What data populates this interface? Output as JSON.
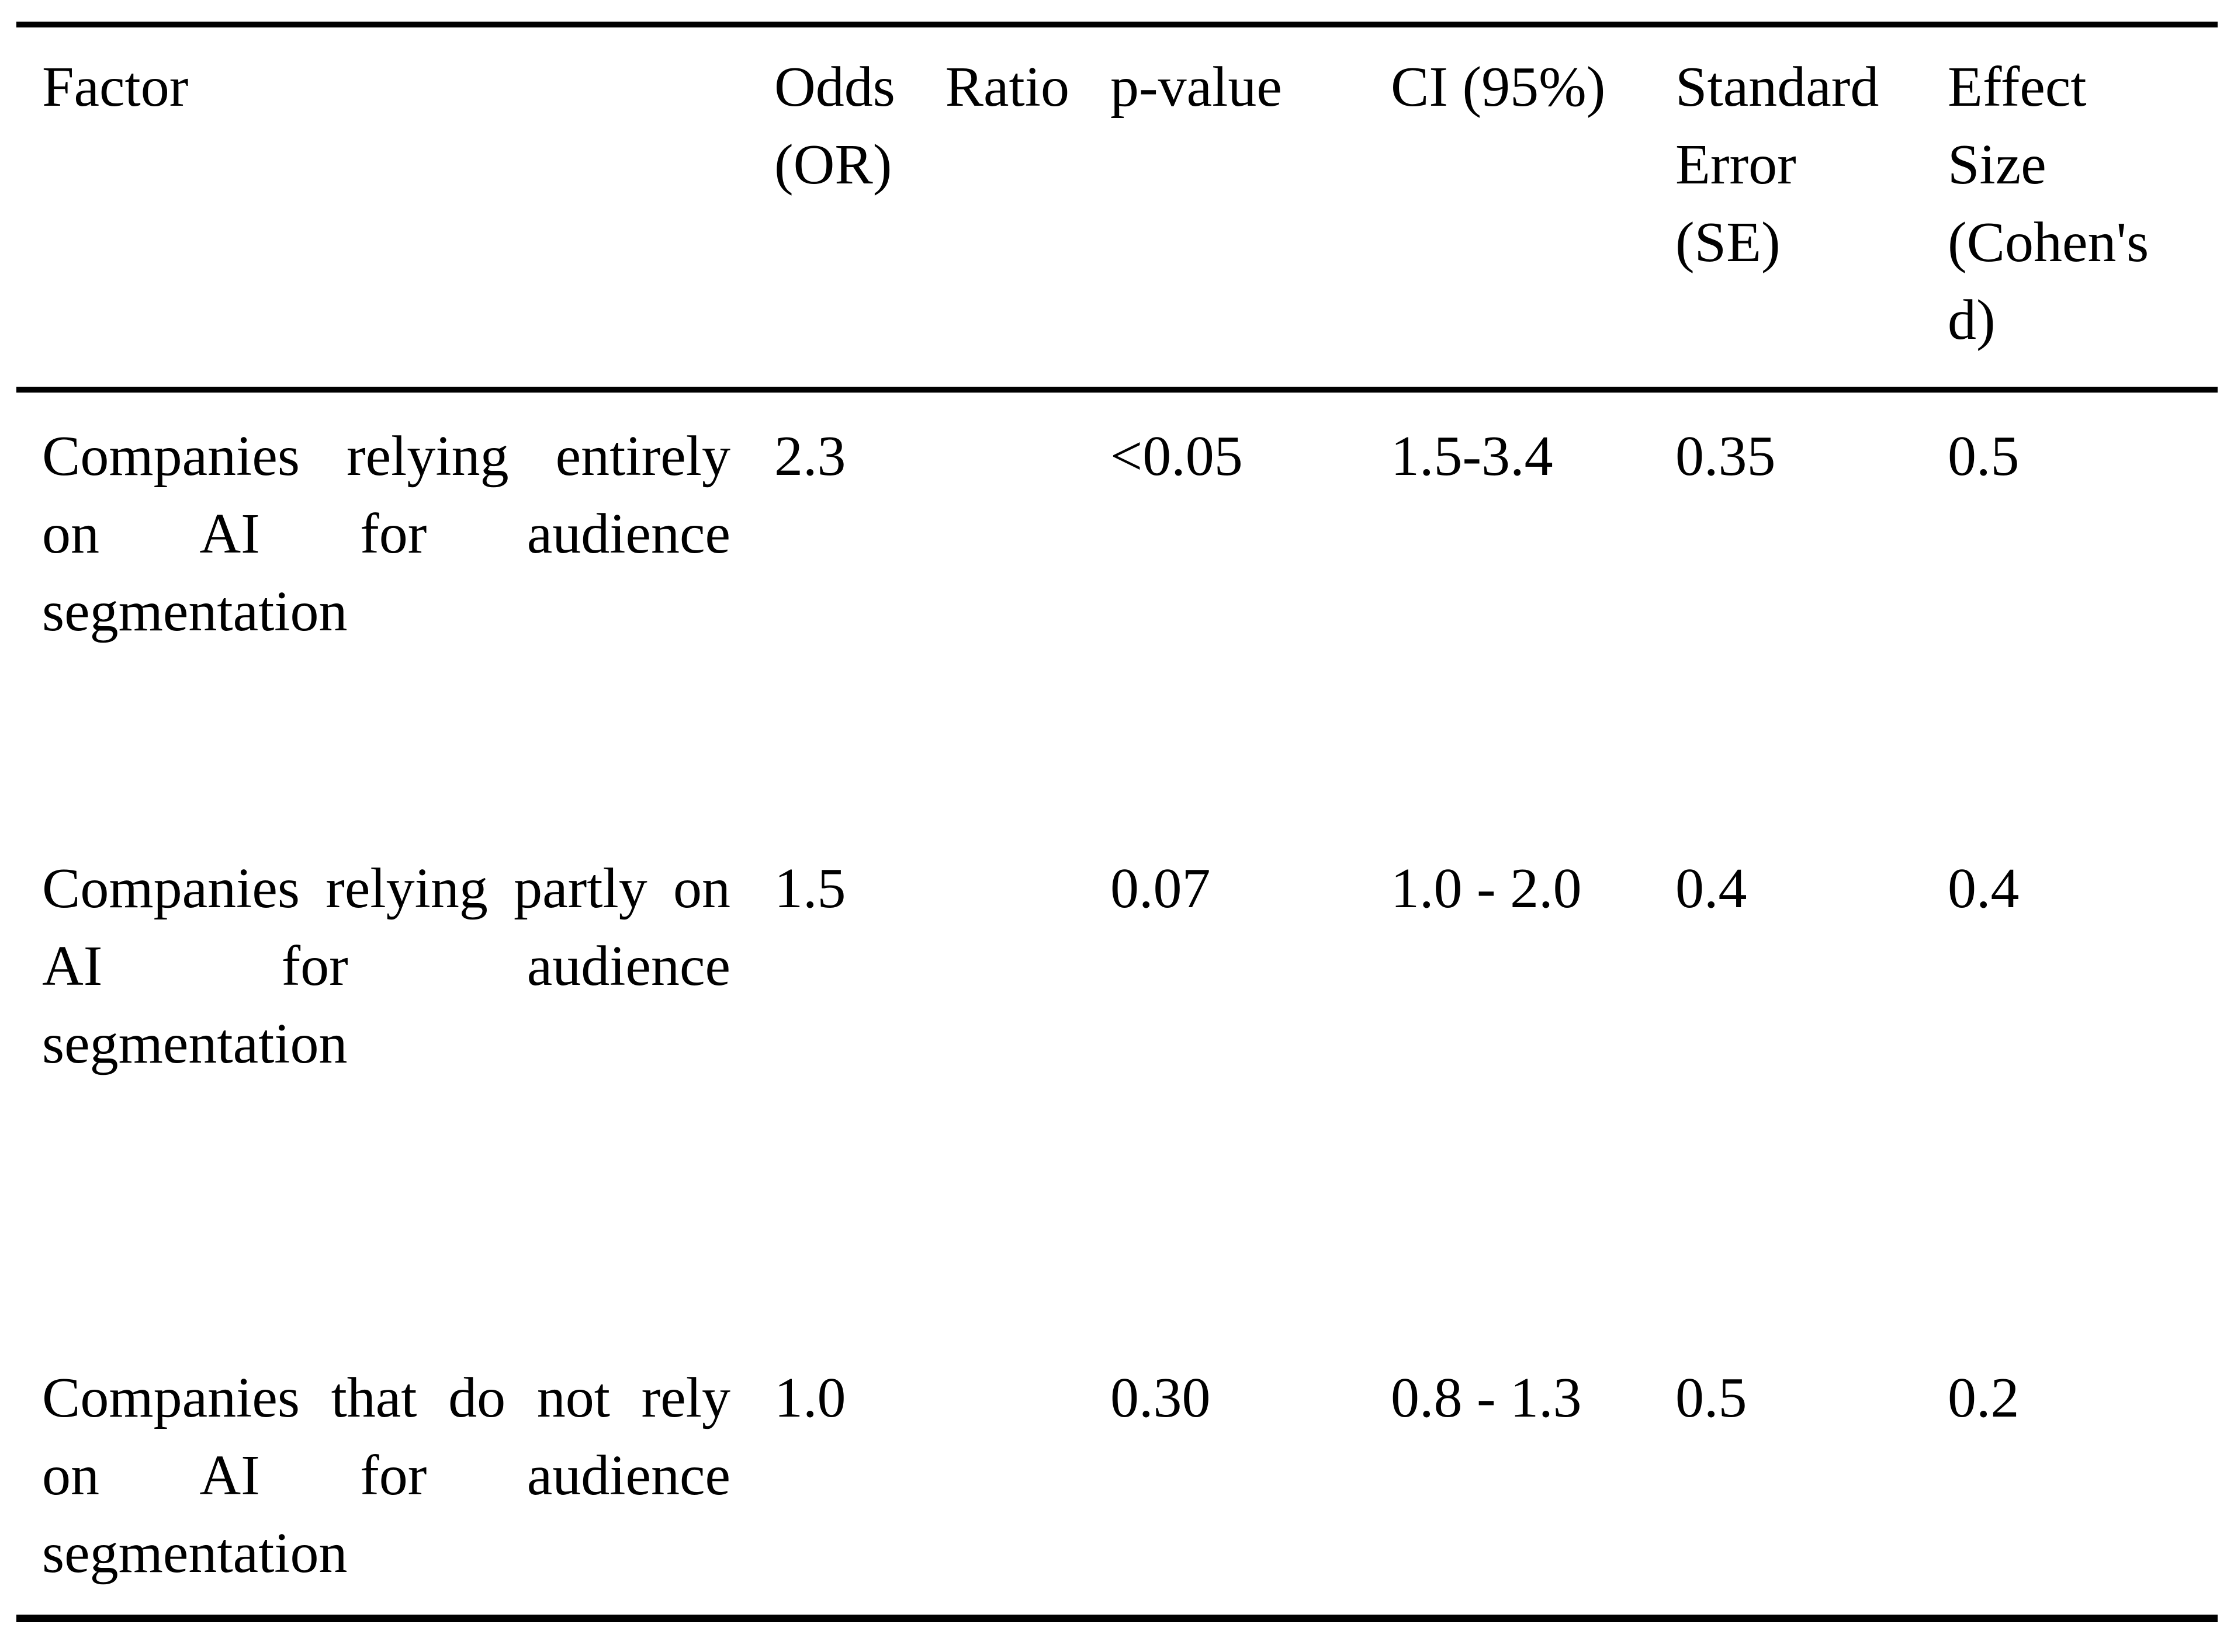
{
  "page": {
    "background_color": "#ffffff",
    "text_color": "#000000",
    "rule_color": "#000000"
  },
  "table": {
    "header": {
      "factor": "Factor",
      "odds_ratio_line1": [
        "Odds",
        "Ratio"
      ],
      "odds_ratio_line2": "(OR)",
      "p_value": "p-value",
      "ci": "CI (95%)",
      "se_lines": [
        "Standard",
        "Error",
        "(SE)"
      ],
      "effect_lines": [
        "Effect",
        "Size",
        "(Cohen's",
        "d)"
      ]
    },
    "rows": [
      {
        "factor_lines": [
          [
            "Companies",
            "relying",
            "entirely"
          ],
          [
            "on",
            "AI",
            "for",
            "audience"
          ],
          [
            "segmentation"
          ]
        ],
        "odds_ratio": "2.3",
        "p_value": "<0.05",
        "ci": "1.5-3.4",
        "se": "0.35",
        "effect_size": "0.5"
      },
      {
        "factor_lines": [
          [
            "Companies",
            "relying",
            "partly",
            "on"
          ],
          [
            "AI",
            "for",
            "audience"
          ],
          [
            "segmentation"
          ]
        ],
        "odds_ratio": "1.5",
        "p_value": "0.07",
        "ci": "1.0 - 2.0",
        "se": "0.4",
        "effect_size": "0.4"
      },
      {
        "factor_lines": [
          [
            "Companies",
            "that",
            "do",
            "not",
            "rely"
          ],
          [
            "on",
            "AI",
            "for",
            "audience"
          ],
          [
            "segmentation"
          ]
        ],
        "odds_ratio": "1.0",
        "p_value": "0.30",
        "ci": "0.8 - 1.3",
        "se": "0.5",
        "effect_size": "0.2"
      }
    ]
  }
}
